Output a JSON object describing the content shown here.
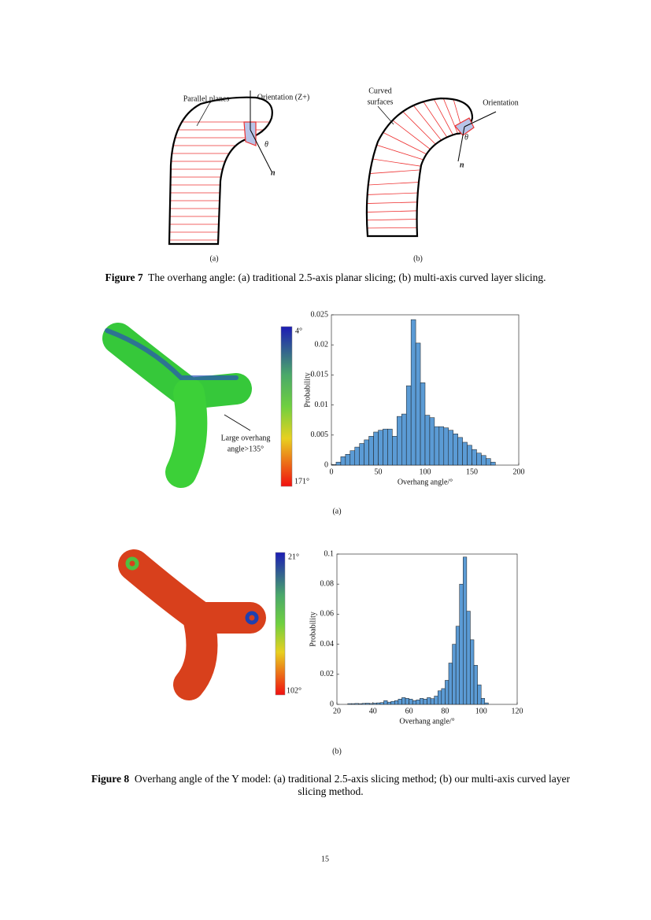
{
  "figure7": {
    "left_labels": [
      "Parallel planes",
      "Orientation (Z+)",
      "θ",
      "n"
    ],
    "right_labels": [
      "Curved",
      "surfaces",
      "Orientation",
      "θ",
      "n"
    ],
    "panels": [
      "(a)",
      "(b)"
    ],
    "caption_label": "Figure 7",
    "caption": "The overhang angle: (a) traditional 2.5-axis planar slicing; (b) multi-axis curved layer slicing."
  },
  "figure8": {
    "colorbars": [
      {
        "top": "4°",
        "bottom": "171°"
      },
      {
        "top": "21°",
        "bottom": "102°"
      }
    ],
    "annotation": [
      "Large overhang",
      "angle>135°"
    ],
    "panels": [
      "(a)",
      "(b)"
    ],
    "caption_label": "Figure 8",
    "caption": "Overhang angle of the Y model: (a) traditional 2.5-axis slicing method; (b) our multi-axis curved layer slicing method."
  },
  "chart_data": [
    {
      "type": "histogram",
      "xlabel": "Overhang angle/°",
      "ylabel": "Probability",
      "color": "#5b9bd5",
      "bins": [
        0,
        5,
        10,
        15,
        20,
        25,
        30,
        35,
        40,
        45,
        50,
        55,
        60,
        65,
        70,
        75,
        80,
        85,
        90,
        95,
        100,
        105,
        110,
        115,
        120,
        125,
        130,
        135,
        140,
        145,
        150,
        155,
        160,
        165,
        170,
        175
      ],
      "values": [
        0.0001,
        0.0005,
        0.0014,
        0.0018,
        0.0024,
        0.003,
        0.0036,
        0.0042,
        0.0048,
        0.0055,
        0.0058,
        0.006,
        0.006,
        0.0048,
        0.0081,
        0.0085,
        0.0132,
        0.0242,
        0.0203,
        0.0137,
        0.0083,
        0.0079,
        0.0064,
        0.0064,
        0.0062,
        0.0058,
        0.0052,
        0.0046,
        0.0038,
        0.0033,
        0.0026,
        0.002,
        0.0016,
        0.0011,
        0.0005
      ],
      "xlim": [
        0,
        200
      ],
      "ylim": [
        0,
        0.025
      ],
      "xticks": [
        0,
        50,
        100,
        150,
        200
      ],
      "yticks": [
        0,
        0.005,
        0.01,
        0.015,
        0.02,
        0.025
      ]
    },
    {
      "type": "histogram",
      "xlabel": "Overhang angle/°",
      "ylabel": "Probability",
      "color": "#5b9bd5",
      "bins": [
        26,
        28,
        30,
        32,
        34,
        36,
        38,
        40,
        42,
        44,
        46,
        48,
        50,
        52,
        54,
        56,
        58,
        60,
        62,
        64,
        66,
        68,
        70,
        72,
        74,
        76,
        78,
        80,
        82,
        84,
        86,
        88,
        90,
        92,
        94,
        96,
        98,
        100,
        102,
        104
      ],
      "values": [
        0.0005,
        0.0005,
        0.0006,
        0.0005,
        0.0007,
        0.0008,
        0.0006,
        0.0008,
        0.001,
        0.0012,
        0.0025,
        0.0015,
        0.002,
        0.0025,
        0.0035,
        0.0045,
        0.004,
        0.0035,
        0.0025,
        0.003,
        0.004,
        0.0035,
        0.0045,
        0.0038,
        0.0055,
        0.009,
        0.0105,
        0.016,
        0.0275,
        0.04,
        0.052,
        0.08,
        0.098,
        0.062,
        0.043,
        0.026,
        0.013,
        0.004,
        0.001
      ],
      "xlim": [
        20,
        120
      ],
      "ylim": [
        0,
        0.1
      ],
      "xticks": [
        20,
        40,
        60,
        80,
        100,
        120
      ],
      "yticks": [
        0,
        0.02,
        0.04,
        0.06,
        0.08,
        0.1
      ]
    }
  ],
  "page_number": "15"
}
